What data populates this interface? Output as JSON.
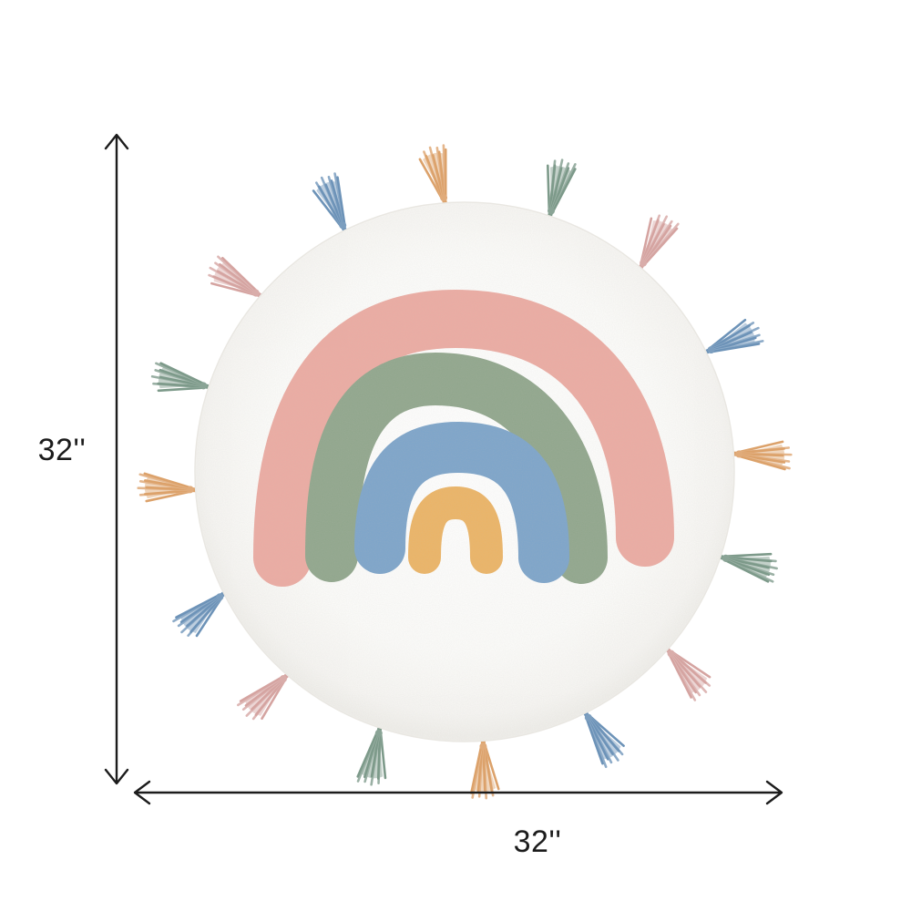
{
  "page": {
    "background_color": "#ffffff"
  },
  "dimensions": {
    "height": {
      "label": "32''"
    },
    "width": {
      "label": "32''"
    },
    "line_color": "#1c1c1c"
  },
  "rug": {
    "description": "Round white tufted rug with pastel rainbow motif and tassel fringe",
    "base_color": "#fdfdfb",
    "edge_color": "#e9e7e2",
    "rainbow_arches": [
      {
        "name": "outer-arch",
        "color_name": "dusty-pink",
        "hex": "#ecaba2"
      },
      {
        "name": "second-arch",
        "color_name": "sage-green",
        "hex": "#90a68c"
      },
      {
        "name": "third-arch",
        "color_name": "dusty-blue",
        "hex": "#7ca4ca"
      },
      {
        "name": "inner-arch",
        "color_name": "marigold-orange",
        "hex": "#ecb465"
      }
    ],
    "tassels": {
      "count": 16,
      "clockwise_color_cycle_from_top": [
        "orange",
        "green",
        "pink",
        "blue"
      ],
      "palette": {
        "orange": "#dca26b",
        "green": "#7d9a8a",
        "pink": "#d5a4a1",
        "blue": "#6d93b8"
      }
    }
  }
}
